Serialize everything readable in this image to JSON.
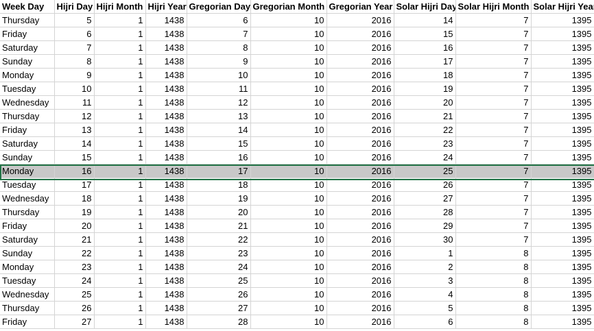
{
  "headers": [
    "Week Day",
    "Hijri Day",
    "Hijri Month",
    "Hijri Year",
    "Gregorian Day",
    "Gregorian Month",
    "Gregorian Year",
    "Solar Hijri Day",
    "Solar Hijri Month",
    "Solar Hijri Year"
  ],
  "selected_row_index": 11,
  "selection_color": "#217346",
  "rows": [
    [
      "Thursday",
      "5",
      "1",
      "1438",
      "6",
      "10",
      "2016",
      "14",
      "7",
      "1395"
    ],
    [
      "Friday",
      "6",
      "1",
      "1438",
      "7",
      "10",
      "2016",
      "15",
      "7",
      "1395"
    ],
    [
      "Saturday",
      "7",
      "1",
      "1438",
      "8",
      "10",
      "2016",
      "16",
      "7",
      "1395"
    ],
    [
      "Sunday",
      "8",
      "1",
      "1438",
      "9",
      "10",
      "2016",
      "17",
      "7",
      "1395"
    ],
    [
      "Monday",
      "9",
      "1",
      "1438",
      "10",
      "10",
      "2016",
      "18",
      "7",
      "1395"
    ],
    [
      "Tuesday",
      "10",
      "1",
      "1438",
      "11",
      "10",
      "2016",
      "19",
      "7",
      "1395"
    ],
    [
      "Wednesday",
      "11",
      "1",
      "1438",
      "12",
      "10",
      "2016",
      "20",
      "7",
      "1395"
    ],
    [
      "Thursday",
      "12",
      "1",
      "1438",
      "13",
      "10",
      "2016",
      "21",
      "7",
      "1395"
    ],
    [
      "Friday",
      "13",
      "1",
      "1438",
      "14",
      "10",
      "2016",
      "22",
      "7",
      "1395"
    ],
    [
      "Saturday",
      "14",
      "1",
      "1438",
      "15",
      "10",
      "2016",
      "23",
      "7",
      "1395"
    ],
    [
      "Sunday",
      "15",
      "1",
      "1438",
      "16",
      "10",
      "2016",
      "24",
      "7",
      "1395"
    ],
    [
      "Monday",
      "16",
      "1",
      "1438",
      "17",
      "10",
      "2016",
      "25",
      "7",
      "1395"
    ],
    [
      "Tuesday",
      "17",
      "1",
      "1438",
      "18",
      "10",
      "2016",
      "26",
      "7",
      "1395"
    ],
    [
      "Wednesday",
      "18",
      "1",
      "1438",
      "19",
      "10",
      "2016",
      "27",
      "7",
      "1395"
    ],
    [
      "Thursday",
      "19",
      "1",
      "1438",
      "20",
      "10",
      "2016",
      "28",
      "7",
      "1395"
    ],
    [
      "Friday",
      "20",
      "1",
      "1438",
      "21",
      "10",
      "2016",
      "29",
      "7",
      "1395"
    ],
    [
      "Saturday",
      "21",
      "1",
      "1438",
      "22",
      "10",
      "2016",
      "30",
      "7",
      "1395"
    ],
    [
      "Sunday",
      "22",
      "1",
      "1438",
      "23",
      "10",
      "2016",
      "1",
      "8",
      "1395"
    ],
    [
      "Monday",
      "23",
      "1",
      "1438",
      "24",
      "10",
      "2016",
      "2",
      "8",
      "1395"
    ],
    [
      "Tuesday",
      "24",
      "1",
      "1438",
      "25",
      "10",
      "2016",
      "3",
      "8",
      "1395"
    ],
    [
      "Wednesday",
      "25",
      "1",
      "1438",
      "26",
      "10",
      "2016",
      "4",
      "8",
      "1395"
    ],
    [
      "Thursday",
      "26",
      "1",
      "1438",
      "27",
      "10",
      "2016",
      "5",
      "8",
      "1395"
    ],
    [
      "Friday",
      "27",
      "1",
      "1438",
      "28",
      "10",
      "2016",
      "6",
      "8",
      "1395"
    ]
  ]
}
